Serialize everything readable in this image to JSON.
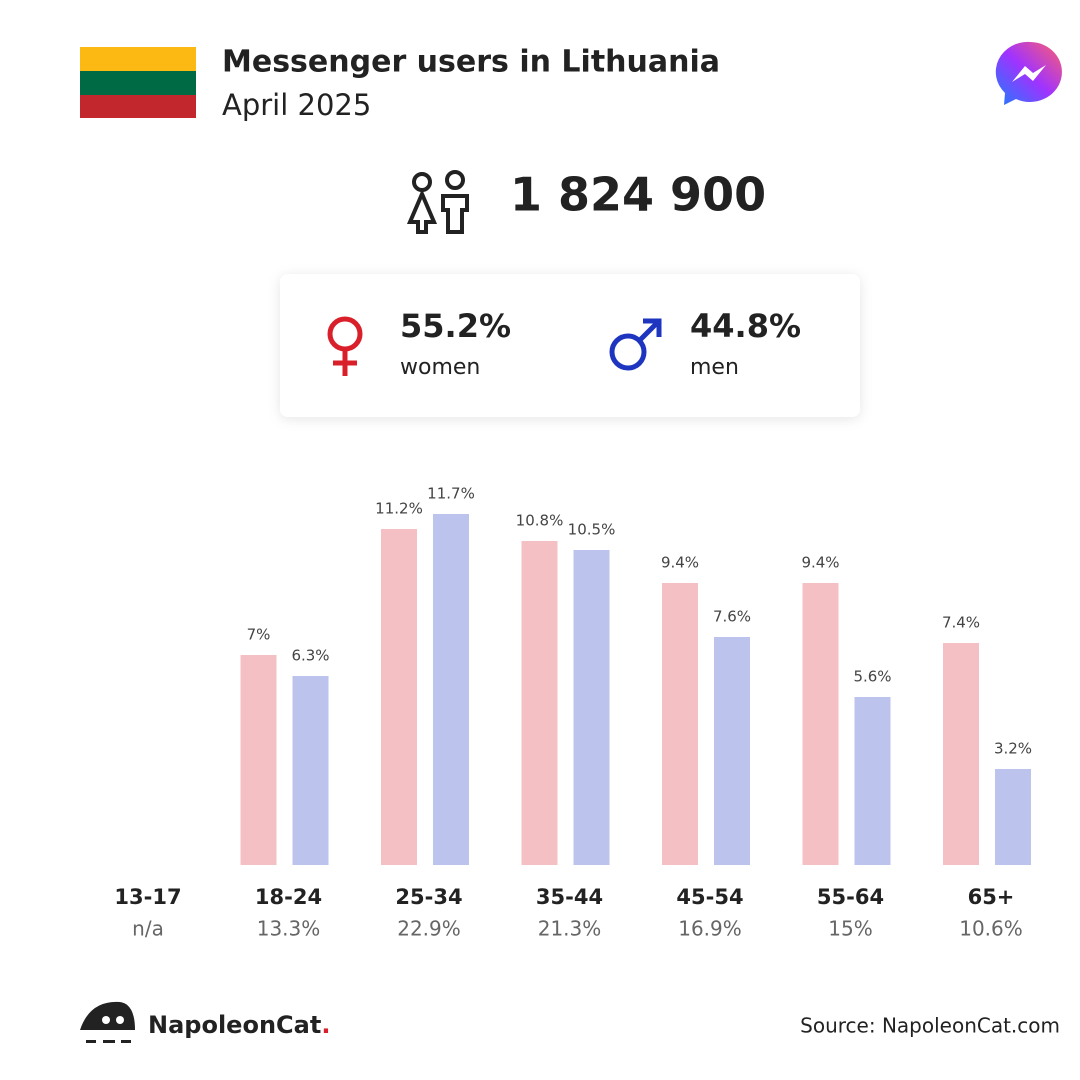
{
  "chart_data": {
    "type": "bar",
    "title": "Messenger users in Lithuania",
    "subtitle": "April 2025",
    "total_users": {
      "value": 1824900,
      "label": "1 824 900"
    },
    "categories": [
      "13-17",
      "18-24",
      "25-34",
      "35-44",
      "45-54",
      "55-64",
      "65+"
    ],
    "totals": [
      null,
      13.3,
      22.9,
      21.3,
      16.9,
      15,
      10.6
    ],
    "total_labels": [
      "n/a",
      "13.3%",
      "22.9%",
      "21.3%",
      "16.9%",
      "15%",
      "10.6%"
    ],
    "series": [
      {
        "name": "women",
        "color": "#f5c0c3",
        "symbol_color": "#d9202a",
        "share": 55.2,
        "share_label": "55.2%",
        "values": [
          null,
          7,
          11.2,
          10.8,
          9.4,
          9.4,
          7.4
        ],
        "value_labels": [
          null,
          "7%",
          "11.2%",
          "10.8%",
          "9.4%",
          "9.4%",
          "7.4%"
        ]
      },
      {
        "name": "men",
        "color": "#bcc3ec",
        "symbol_color": "#1e35c0",
        "share": 44.8,
        "share_label": "44.8%",
        "values": [
          null,
          6.3,
          11.7,
          10.5,
          7.6,
          5.6,
          3.2
        ],
        "value_labels": [
          null,
          "6.3%",
          "11.7%",
          "10.5%",
          "7.6%",
          "5.6%",
          "3.2%"
        ]
      }
    ],
    "brand": {
      "name": "NapoleonCat",
      "dot": "."
    },
    "source": "Source: NapoleonCat.com"
  }
}
